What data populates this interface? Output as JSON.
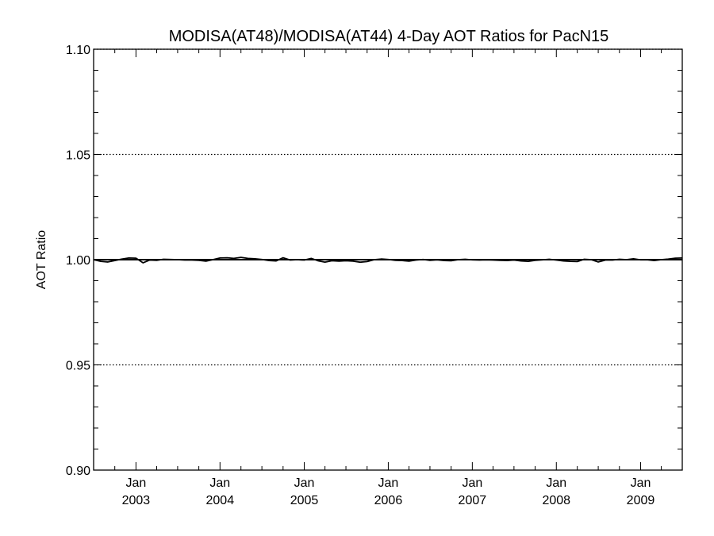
{
  "chart_data": {
    "type": "line",
    "title": "MODISA(AT48)/MODISA(AT44) 4-Day AOT Ratios for PacN15",
    "xlabel": "",
    "ylabel": "AOT Ratio",
    "ylim": [
      0.9,
      1.1
    ],
    "xlim": [
      "2002-07-01",
      "2009-07-01"
    ],
    "yticks": [
      "0.90",
      "0.95",
      "1.00",
      "1.05",
      "1.10"
    ],
    "xticks": [
      {
        "month": "Jan",
        "year": "2003",
        "date": "2003-01-01"
      },
      {
        "month": "Jan",
        "year": "2004",
        "date": "2004-01-01"
      },
      {
        "month": "Jan",
        "year": "2005",
        "date": "2005-01-01"
      },
      {
        "month": "Jan",
        "year": "2006",
        "date": "2006-01-01"
      },
      {
        "month": "Jan",
        "year": "2007",
        "date": "2007-01-01"
      },
      {
        "month": "Jan",
        "year": "2008",
        "date": "2008-01-01"
      },
      {
        "month": "Jan",
        "year": "2009",
        "date": "2009-01-01"
      }
    ],
    "grid": "dotted at 0.95, 1.00 and 1.05",
    "reference_line": 1.0,
    "series": [
      {
        "x": [
          "2002-07-01",
          "2002-08-01",
          "2002-09-01",
          "2002-10-01",
          "2002-11-01",
          "2002-12-01",
          "2003-01-01",
          "2003-02-01",
          "2003-03-01",
          "2003-04-01",
          "2003-05-01",
          "2003-06-01",
          "2003-07-01",
          "2003-08-01",
          "2003-09-01",
          "2003-10-01",
          "2003-11-01",
          "2003-12-01",
          "2004-01-01",
          "2004-02-01",
          "2004-03-01",
          "2004-04-01",
          "2004-05-01",
          "2004-06-01",
          "2004-07-01",
          "2004-08-01",
          "2004-09-01",
          "2004-10-01",
          "2004-11-01",
          "2004-12-01",
          "2005-01-01",
          "2005-02-01",
          "2005-03-01",
          "2005-04-01",
          "2005-05-01",
          "2005-06-01",
          "2005-07-01",
          "2005-08-01",
          "2005-09-01",
          "2005-10-01",
          "2005-11-01",
          "2005-12-01",
          "2006-01-01",
          "2006-02-01",
          "2006-03-01",
          "2006-04-01",
          "2006-05-01",
          "2006-06-01",
          "2006-07-01",
          "2006-08-01",
          "2006-09-01",
          "2006-10-01",
          "2006-11-01",
          "2006-12-01",
          "2007-01-01",
          "2007-02-01",
          "2007-03-01",
          "2007-04-01",
          "2007-05-01",
          "2007-06-01",
          "2007-07-01",
          "2007-08-01",
          "2007-09-01",
          "2007-10-01",
          "2007-11-01",
          "2007-12-01",
          "2008-01-01",
          "2008-02-01",
          "2008-03-01",
          "2008-04-01",
          "2008-05-01",
          "2008-06-01",
          "2008-07-01",
          "2008-08-01",
          "2008-09-01",
          "2008-10-01",
          "2008-11-01",
          "2008-12-01",
          "2009-01-01",
          "2009-02-01",
          "2009-03-01",
          "2009-04-01",
          "2009-05-01",
          "2009-06-01",
          "2009-07-01"
        ],
        "values": [
          1.0,
          0.9992,
          0.9989,
          0.9996,
          1.0003,
          1.0008,
          1.0007,
          0.9985,
          0.9998,
          0.9997,
          1.0002,
          1.0001,
          1.0,
          0.9998,
          0.9998,
          0.9997,
          0.9993,
          1.0,
          1.0008,
          1.0009,
          1.0006,
          1.0011,
          1.0006,
          1.0004,
          1.0001,
          0.9996,
          0.9994,
          1.0009,
          0.9998,
          1.0,
          0.9998,
          1.0006,
          0.9995,
          0.9988,
          0.9995,
          0.9993,
          0.9995,
          0.9993,
          0.9988,
          0.9991,
          1.0,
          1.0003,
          1.0001,
          0.9997,
          0.9996,
          0.9993,
          0.9998,
          1.0001,
          0.9997,
          0.9999,
          0.9996,
          0.9995,
          1.0,
          1.0002,
          0.9999,
          0.9998,
          0.9999,
          0.9998,
          0.9997,
          0.9996,
          0.9998,
          0.9994,
          0.9992,
          0.9997,
          0.9999,
          1.0002,
          0.9998,
          0.9994,
          0.9992,
          0.9991,
          1.0002,
          1.0,
          0.9989,
          0.9998,
          0.9998,
          1.0002,
          1.0,
          1.0004,
          0.9999,
          0.9999,
          0.9996,
          1.0,
          1.0003,
          1.0007,
          1.0008
        ]
      }
    ]
  }
}
